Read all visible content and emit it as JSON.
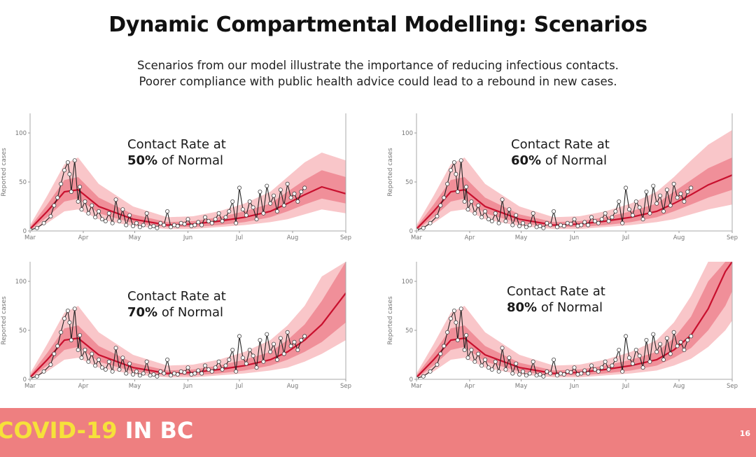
{
  "slide": {
    "title": "Dynamic Compartmental Modelling: Scenarios",
    "subtitle_line1": "Scenarios from our model illustrate the importance of reducing infectious contacts.",
    "subtitle_line2": "Poorer compliance with public health advice could lead to a rebound in new cases.",
    "footer_brand_part1": "COVID-19",
    "footer_brand_part2": "IN BC",
    "page_number": "16"
  },
  "colors": {
    "ci_outer": "#f9c6c9",
    "ci_inner": "#f08f99",
    "model_line": "#c8102e",
    "observed": "#222222",
    "footer": "#ee7f80",
    "brand_yellow": "#f6e13a"
  },
  "chart_data": [
    {
      "type": "line",
      "label_line1": "Contact Rate at",
      "label_pct": "50%",
      "label_rest": " of Normal",
      "ylabel": "Reported cases",
      "xlabel": "",
      "xticks": [
        "Mar",
        "Apr",
        "May",
        "Jun",
        "Jul",
        "Aug",
        "Sep"
      ],
      "yticks": [
        0,
        50,
        100
      ],
      "ylim": [
        0,
        120
      ],
      "model_projection": {
        "x_day": [
          0,
          10,
          20,
          28,
          40,
          60,
          80,
          95,
          110,
          125,
          140,
          150,
          160,
          170,
          184
        ],
        "median": [
          2,
          20,
          40,
          42,
          25,
          12,
          6,
          7,
          10,
          14,
          20,
          28,
          37,
          45,
          38
        ],
        "inner_low": [
          1,
          14,
          30,
          33,
          18,
          8,
          4,
          4,
          6,
          9,
          14,
          20,
          27,
          33,
          28
        ],
        "inner_high": [
          4,
          27,
          52,
          55,
          34,
          17,
          9,
          10,
          14,
          20,
          28,
          40,
          52,
          62,
          55
        ],
        "outer_low": [
          0,
          8,
          20,
          22,
          12,
          5,
          2,
          2,
          4,
          6,
          9,
          12,
          17,
          22,
          18
        ],
        "outer_high": [
          6,
          36,
          68,
          75,
          48,
          25,
          14,
          15,
          20,
          28,
          40,
          55,
          70,
          80,
          72
        ]
      }
    },
    {
      "type": "line",
      "label_line1": "Contact Rate at",
      "label_pct": "60%",
      "label_rest": " of Normal",
      "ylabel": "Reported cases",
      "xlabel": "",
      "xticks": [
        "Mar",
        "Apr",
        "May",
        "Jun",
        "Jul",
        "Aug",
        "Sep"
      ],
      "yticks": [
        0,
        50,
        100
      ],
      "ylim": [
        0,
        120
      ],
      "model_projection": {
        "x_day": [
          0,
          10,
          20,
          28,
          40,
          60,
          80,
          95,
          110,
          125,
          140,
          150,
          160,
          170,
          184
        ],
        "median": [
          2,
          20,
          40,
          42,
          25,
          12,
          6,
          7,
          10,
          14,
          20,
          28,
          37,
          47,
          57
        ],
        "inner_low": [
          1,
          14,
          30,
          33,
          18,
          8,
          4,
          4,
          6,
          9,
          14,
          20,
          27,
          34,
          42
        ],
        "inner_high": [
          4,
          27,
          52,
          55,
          34,
          17,
          9,
          10,
          14,
          20,
          28,
          40,
          52,
          64,
          75
        ],
        "outer_low": [
          0,
          8,
          20,
          22,
          12,
          5,
          2,
          2,
          4,
          6,
          9,
          12,
          17,
          22,
          27
        ],
        "outer_high": [
          6,
          36,
          68,
          75,
          48,
          25,
          14,
          15,
          20,
          28,
          40,
          55,
          72,
          88,
          103
        ]
      }
    },
    {
      "type": "line",
      "label_line1": "Contact Rate at",
      "label_pct": "70%",
      "label_rest": " of Normal",
      "ylabel": "Reported cases",
      "xlabel": "",
      "xticks": [
        "Mar",
        "Apr",
        "May",
        "Jun",
        "Jul",
        "Aug",
        "Sep"
      ],
      "yticks": [
        0,
        50,
        100
      ],
      "ylim": [
        0,
        120
      ],
      "model_projection": {
        "x_day": [
          0,
          10,
          20,
          28,
          40,
          60,
          80,
          95,
          110,
          125,
          140,
          150,
          160,
          170,
          184
        ],
        "median": [
          2,
          20,
          40,
          42,
          25,
          12,
          6,
          7,
          10,
          14,
          20,
          28,
          40,
          56,
          88
        ],
        "inner_low": [
          1,
          14,
          30,
          33,
          18,
          8,
          4,
          4,
          6,
          9,
          14,
          20,
          28,
          38,
          58
        ],
        "inner_high": [
          4,
          27,
          52,
          55,
          34,
          17,
          9,
          10,
          14,
          20,
          28,
          40,
          56,
          80,
          125
        ],
        "outer_low": [
          0,
          8,
          20,
          22,
          12,
          5,
          2,
          2,
          4,
          6,
          9,
          12,
          18,
          26,
          40
        ],
        "outer_high": [
          6,
          36,
          68,
          75,
          48,
          25,
          14,
          15,
          20,
          28,
          40,
          55,
          75,
          105,
          125
        ]
      }
    },
    {
      "type": "line",
      "label_line1": "Contact Rate at",
      "label_pct": "80%",
      "label_rest": " of Normal",
      "ylabel": "Reported cases",
      "xlabel": "",
      "xticks": [
        "Mar",
        "Apr",
        "May",
        "Jun",
        "Jul",
        "Aug",
        "Sep"
      ],
      "yticks": [
        0,
        50,
        100
      ],
      "ylim": [
        0,
        120
      ],
      "model_projection": {
        "x_day": [
          0,
          10,
          20,
          28,
          40,
          60,
          80,
          95,
          110,
          125,
          140,
          150,
          160,
          170,
          180,
          184
        ],
        "median": [
          2,
          20,
          40,
          42,
          25,
          12,
          6,
          7,
          10,
          14,
          20,
          30,
          45,
          72,
          110,
          125
        ],
        "inner_low": [
          1,
          14,
          30,
          33,
          18,
          8,
          4,
          4,
          6,
          9,
          14,
          22,
          32,
          50,
          75,
          90
        ],
        "inner_high": [
          4,
          27,
          52,
          55,
          34,
          17,
          9,
          10,
          14,
          20,
          28,
          42,
          64,
          100,
          125,
          125
        ],
        "outer_low": [
          0,
          8,
          20,
          22,
          12,
          5,
          2,
          2,
          4,
          6,
          9,
          14,
          21,
          33,
          50,
          60
        ],
        "outer_high": [
          6,
          36,
          68,
          75,
          48,
          25,
          14,
          15,
          20,
          28,
          40,
          58,
          85,
          125,
          125,
          125
        ]
      }
    }
  ],
  "observed_cases": {
    "x_day": [
      0,
      4,
      8,
      12,
      14,
      16,
      18,
      20,
      22,
      23,
      24,
      26,
      28,
      29,
      30,
      32,
      34,
      36,
      38,
      40,
      42,
      44,
      46,
      48,
      50,
      52,
      54,
      56,
      58,
      60,
      62,
      64,
      66,
      68,
      70,
      72,
      74,
      76,
      78,
      80,
      82,
      84,
      86,
      88,
      90,
      92,
      94,
      96,
      98,
      100,
      102,
      104,
      106,
      108,
      110,
      112,
      114,
      116,
      118,
      120,
      122,
      124,
      126,
      128,
      130,
      132,
      134,
      136,
      138,
      140,
      142,
      144,
      146,
      148,
      150,
      152,
      154,
      156,
      158,
      160
    ],
    "cases": [
      1,
      3,
      8,
      15,
      26,
      34,
      48,
      62,
      70,
      58,
      40,
      72,
      30,
      45,
      22,
      30,
      18,
      26,
      14,
      20,
      12,
      10,
      18,
      8,
      32,
      10,
      22,
      6,
      16,
      5,
      8,
      4,
      6,
      18,
      4,
      5,
      3,
      8,
      6,
      20,
      4,
      6,
      5,
      8,
      7,
      12,
      5,
      6,
      9,
      6,
      14,
      10,
      8,
      12,
      18,
      10,
      14,
      20,
      30,
      8,
      44,
      22,
      16,
      30,
      24,
      12,
      40,
      18,
      46,
      28,
      36,
      20,
      42,
      26,
      48,
      34,
      38,
      30,
      40,
      44
    ]
  }
}
